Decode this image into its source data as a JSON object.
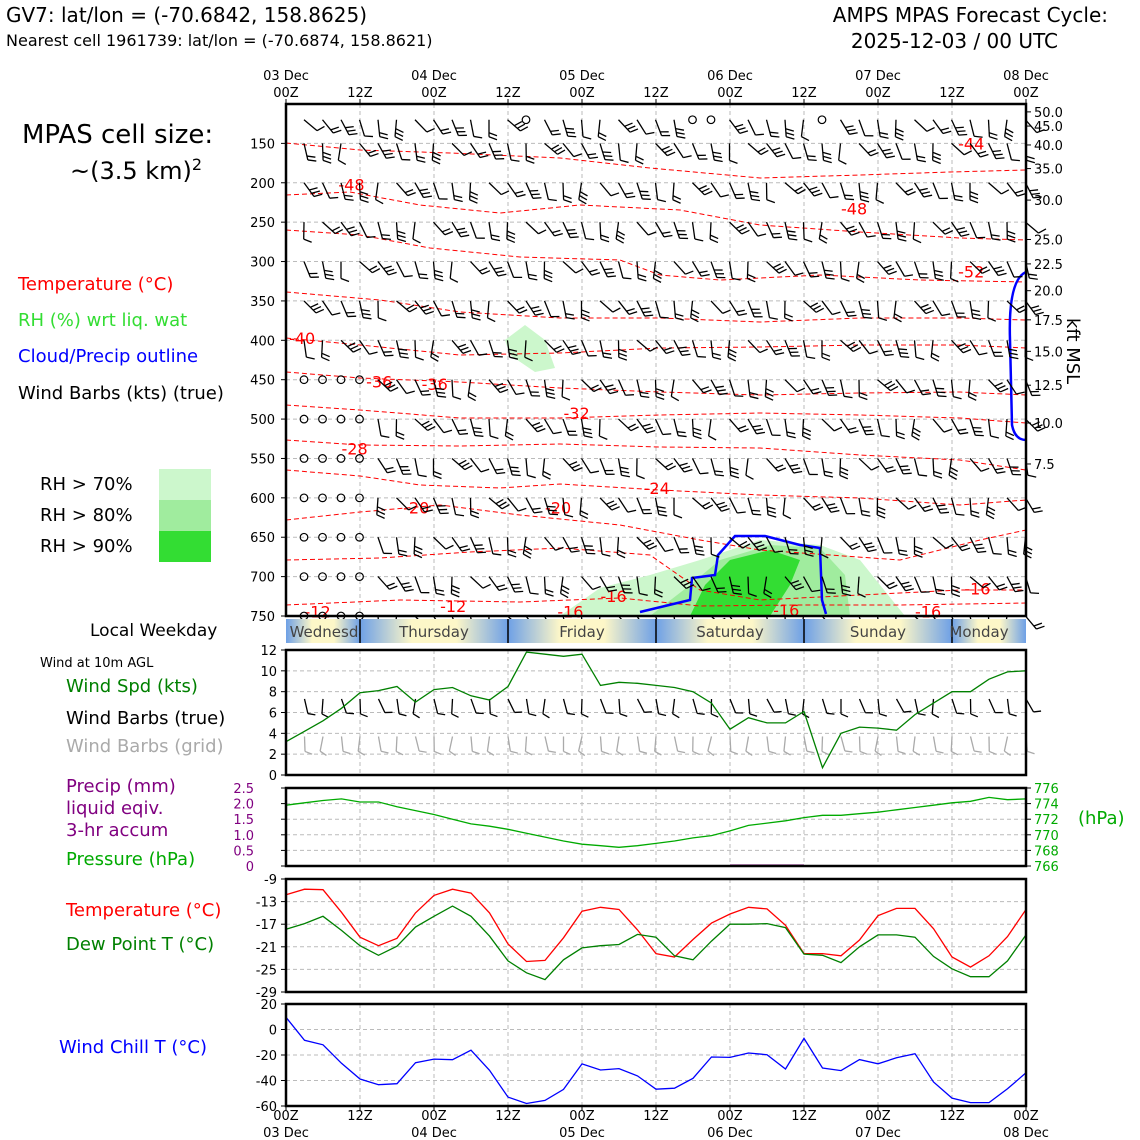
{
  "header": {
    "station_line": "GV7: lat/lon = (-70.6842, 158.8625)",
    "cell_line": "Nearest cell 1961739: lat/lon = (-70.6874, 158.8621)",
    "cycle_title": "AMPS MPAS Forecast Cycle:",
    "cycle_date": "2025-12-03 / 00 UTC"
  },
  "cell_size": {
    "label": "MPAS cell size:",
    "value": "~(3.5 km)",
    "exponent": "2"
  },
  "legend": {
    "temperature": "Temperature (°C)",
    "rh": "RH (%) wrt liq. wat",
    "cloud": "Cloud/Precip outline",
    "wind": "Wind Barbs (kts) (true)",
    "rh70": "RH > 70%",
    "rh80": "RH > 80%",
    "rh90": "RH > 90%",
    "colors": {
      "temperature": "#ff0000",
      "rh": "#33dd33",
      "cloud": "#0000ff",
      "rh70": "#ccf7cc",
      "rh80": "#a0ec9e",
      "rh90": "#33dd33"
    }
  },
  "time_axis": {
    "hours": [
      0,
      120
    ],
    "top_ticks": [
      {
        "h": 0,
        "line1": "03 Dec",
        "line2": "00Z"
      },
      {
        "h": 12,
        "line1": "",
        "line2": "12Z"
      },
      {
        "h": 24,
        "line1": "04 Dec",
        "line2": "00Z"
      },
      {
        "h": 36,
        "line1": "",
        "line2": "12Z"
      },
      {
        "h": 48,
        "line1": "05 Dec",
        "line2": "00Z"
      },
      {
        "h": 60,
        "line1": "",
        "line2": "12Z"
      },
      {
        "h": 72,
        "line1": "06 Dec",
        "line2": "00Z"
      },
      {
        "h": 84,
        "line1": "",
        "line2": "12Z"
      },
      {
        "h": 96,
        "line1": "07 Dec",
        "line2": "00Z"
      },
      {
        "h": 108,
        "line1": "",
        "line2": "12Z"
      },
      {
        "h": 120,
        "line1": "08 Dec",
        "line2": "00Z"
      }
    ],
    "bottom_ticks": [
      {
        "h": 0,
        "line1": "00Z",
        "line2": "03 Dec"
      },
      {
        "h": 12,
        "line1": "12Z",
        "line2": ""
      },
      {
        "h": 24,
        "line1": "00Z",
        "line2": "04 Dec"
      },
      {
        "h": 36,
        "line1": "12Z",
        "line2": ""
      },
      {
        "h": 48,
        "line1": "00Z",
        "line2": "05 Dec"
      },
      {
        "h": 60,
        "line1": "12Z",
        "line2": ""
      },
      {
        "h": 72,
        "line1": "00Z",
        "line2": "06 Dec"
      },
      {
        "h": 84,
        "line1": "12Z",
        "line2": ""
      },
      {
        "h": 96,
        "line1": "00Z",
        "line2": "07 Dec"
      },
      {
        "h": 108,
        "line1": "12Z",
        "line2": ""
      },
      {
        "h": 120,
        "line1": "00Z",
        "line2": "08 Dec"
      }
    ]
  },
  "weekday": {
    "label": "Local Weekday",
    "days": [
      "Wednesday",
      "Thursday",
      "Friday",
      "Saturday",
      "Sunday",
      "Monday"
    ]
  },
  "chart_data": [
    {
      "type": "heatmap",
      "panel": "cross-section",
      "yaxis_left": "pressure (hPa)",
      "ylim": [
        750,
        100
      ],
      "pressure_ticks": [
        150,
        200,
        250,
        300,
        350,
        400,
        450,
        500,
        550,
        600,
        650,
        700,
        750
      ],
      "ylabel_right": "kft MSL",
      "kft_ticks": [
        {
          "p": 110,
          "label": "50.0"
        },
        {
          "p": 128,
          "label": "45.0"
        },
        {
          "p": 152,
          "label": "40.0"
        },
        {
          "p": 182,
          "label": "35.0"
        },
        {
          "p": 222,
          "label": "30.0"
        },
        {
          "p": 272,
          "label": "25.0"
        },
        {
          "p": 303,
          "label": "22.5"
        },
        {
          "p": 337,
          "label": "20.0"
        },
        {
          "p": 374,
          "label": "17.5"
        },
        {
          "p": 414,
          "label": "15.0"
        },
        {
          "p": 457,
          "label": "12.5"
        },
        {
          "p": 505,
          "label": "10.0"
        },
        {
          "p": 557,
          "label": "7.5"
        }
      ],
      "temperature_labels": [
        {
          "h": 109,
          "p": 158,
          "text": "-44"
        },
        {
          "h": 8.5,
          "p": 210,
          "text": "-48"
        },
        {
          "h": 90,
          "p": 240,
          "text": "-48"
        },
        {
          "h": 109,
          "p": 320,
          "text": "-52"
        },
        {
          "h": 0.5,
          "p": 405,
          "text": "-40"
        },
        {
          "h": 13,
          "p": 460,
          "text": "-36"
        },
        {
          "h": 22,
          "p": 463,
          "text": "-36"
        },
        {
          "h": 45,
          "p": 500,
          "text": "-32"
        },
        {
          "h": 9,
          "p": 545,
          "text": "-28"
        },
        {
          "h": 19,
          "p": 620,
          "text": "-20"
        },
        {
          "h": 42,
          "p": 620,
          "text": "-20"
        },
        {
          "h": 58,
          "p": 595,
          "text": "-24"
        },
        {
          "h": 3,
          "p": 752,
          "text": "-12"
        },
        {
          "h": 25,
          "p": 745,
          "text": "-12"
        },
        {
          "h": 44,
          "p": 752,
          "text": "-16"
        },
        {
          "h": 51,
          "p": 732,
          "text": "-16"
        },
        {
          "h": 79,
          "p": 750,
          "text": "-16"
        },
        {
          "h": 102,
          "p": 752,
          "text": "-16"
        },
        {
          "h": 110,
          "p": 723,
          "text": "-16"
        }
      ],
      "barb_levels": [
        120,
        150,
        200,
        250,
        300,
        350,
        400,
        450,
        500,
        550,
        600,
        650,
        700,
        750
      ]
    },
    {
      "type": "line",
      "panel": "wind10m",
      "title": "Wind at 10m AGL",
      "labels": [
        "Wind Spd (kts)",
        "Wind Barbs (true)",
        "Wind Barbs (grid)"
      ],
      "label_colors": [
        "#008000",
        "#000000",
        "#aaaaaa"
      ],
      "ylim": [
        0,
        12
      ],
      "yticks": [
        0,
        2,
        4,
        6,
        8,
        10,
        12
      ],
      "x": [
        0,
        3,
        6,
        9,
        12,
        15,
        18,
        21,
        24,
        27,
        30,
        33,
        36,
        39,
        42,
        45,
        48,
        51,
        54,
        57,
        60,
        63,
        66,
        69,
        72,
        75,
        78,
        81,
        84,
        87,
        90,
        93,
        96,
        99,
        102,
        105,
        108,
        111,
        114,
        117,
        120
      ],
      "series": [
        {
          "name": "Wind Spd (kts)",
          "color": "#008000",
          "values": [
            3.2,
            4.2,
            5.2,
            6.4,
            7.9,
            8.1,
            8.5,
            7.0,
            8.2,
            8.4,
            7.6,
            7.2,
            8.5,
            11.8,
            11.6,
            11.4,
            11.6,
            8.6,
            8.9,
            8.8,
            8.6,
            8.4,
            8.0,
            6.9,
            4.4,
            5.5,
            5.0,
            5.0,
            6.1,
            0.7,
            4.0,
            4.6,
            4.5,
            4.3,
            5.8,
            6.9,
            8.0,
            8.0,
            9.2,
            9.9,
            10.0
          ]
        }
      ]
    },
    {
      "type": "line",
      "panel": "precip-pressure",
      "labels": [
        "Precip (mm)",
        "liquid eqiv.",
        "3-hr accum",
        "Pressure (hPa)"
      ],
      "label_colors": [
        "#800080",
        "#800080",
        "#800080",
        "#00aa00"
      ],
      "y1lim": [
        0,
        2.5
      ],
      "y1ticks": [
        "0",
        "0.5",
        "1.0",
        "1.5",
        "2.0",
        "2.5"
      ],
      "y2lim": [
        766,
        776
      ],
      "y2ticks": [
        "766",
        "768",
        "770",
        "772",
        "774",
        "776"
      ],
      "y2label": "(hPa)",
      "x": [
        0,
        3,
        6,
        9,
        12,
        15,
        18,
        21,
        24,
        27,
        30,
        33,
        36,
        39,
        42,
        45,
        48,
        51,
        54,
        57,
        60,
        63,
        66,
        69,
        72,
        75,
        78,
        81,
        84,
        87,
        90,
        93,
        96,
        99,
        102,
        105,
        108,
        111,
        114,
        117,
        120
      ],
      "series": [
        {
          "name": "Pressure (hPa)",
          "color": "#00aa00",
          "values": [
            773.8,
            774.1,
            774.4,
            774.6,
            774.2,
            774.2,
            773.6,
            773.1,
            772.6,
            772.0,
            771.4,
            771.1,
            770.7,
            770.2,
            769.7,
            769.2,
            768.8,
            768.6,
            768.4,
            768.6,
            768.9,
            769.2,
            769.6,
            769.9,
            770.5,
            771.2,
            771.5,
            771.8,
            772.2,
            772.5,
            772.5,
            772.7,
            772.9,
            773.2,
            773.5,
            773.8,
            774.1,
            774.3,
            774.8,
            774.5,
            774.6
          ]
        },
        {
          "name": "Precip (mm)",
          "color": "#800080",
          "values": [
            0,
            0,
            0,
            0,
            0,
            0,
            0,
            0,
            0,
            0,
            0,
            0,
            0,
            0,
            0,
            0,
            0,
            0,
            0,
            0,
            0,
            0,
            0,
            0,
            0.05,
            0.05,
            0.05,
            0.05,
            0,
            0,
            0,
            0,
            0,
            0,
            0,
            0,
            0,
            0,
            0,
            0,
            0
          ]
        }
      ]
    },
    {
      "type": "line",
      "panel": "temperature",
      "labels": [
        "Temperature (°C)",
        "Dew Point T (°C)"
      ],
      "label_colors": [
        "#ff0000",
        "#008000"
      ],
      "ylim": [
        -29,
        -9
      ],
      "yticks": [
        -29,
        -25,
        -21,
        -17,
        -13,
        -9
      ],
      "x": [
        0,
        3,
        6,
        9,
        12,
        15,
        18,
        21,
        24,
        27,
        30,
        33,
        36,
        39,
        42,
        45,
        48,
        51,
        54,
        57,
        60,
        63,
        66,
        69,
        72,
        75,
        78,
        81,
        84,
        87,
        90,
        93,
        96,
        99,
        102,
        105,
        108,
        111,
        114,
        117,
        120
      ],
      "series": [
        {
          "name": "Temperature (°C)",
          "color": "#ff0000",
          "values": [
            -11.8,
            -10.8,
            -10.9,
            -14.9,
            -19.3,
            -20.8,
            -19.5,
            -15.0,
            -11.9,
            -10.8,
            -11.5,
            -15.0,
            -20.5,
            -23.6,
            -23.4,
            -19.4,
            -14.7,
            -14.0,
            -14.4,
            -18.0,
            -22.2,
            -22.8,
            -19.7,
            -16.8,
            -15.2,
            -14.0,
            -14.3,
            -17.2,
            -22.2,
            -22.2,
            -22.6,
            -19.8,
            -15.5,
            -14.2,
            -14.2,
            -17.8,
            -22.8,
            -24.6,
            -22.6,
            -19.2,
            -14.4
          ]
        },
        {
          "name": "Dew Point T (°C)",
          "color": "#008000",
          "values": [
            -17.9,
            -16.9,
            -15.6,
            -18.1,
            -20.8,
            -22.5,
            -20.9,
            -17.5,
            -15.6,
            -13.8,
            -15.6,
            -19.1,
            -23.5,
            -25.6,
            -26.8,
            -23.3,
            -21.2,
            -20.8,
            -20.6,
            -18.8,
            -19.3,
            -22.6,
            -23.3,
            -20.0,
            -17.0,
            -17.0,
            -16.9,
            -17.6,
            -22.3,
            -22.5,
            -23.8,
            -21.0,
            -18.9,
            -18.9,
            -19.3,
            -22.7,
            -24.9,
            -26.3,
            -26.3,
            -23.5,
            -18.9
          ]
        }
      ]
    },
    {
      "type": "line",
      "panel": "windchill",
      "labels": [
        "Wind Chill T (°C)"
      ],
      "label_colors": [
        "#0000ff"
      ],
      "ylim": [
        -60,
        20
      ],
      "yticks": [
        -60,
        -40,
        -20,
        0,
        20
      ],
      "x": [
        0,
        3,
        6,
        9,
        12,
        15,
        18,
        21,
        24,
        27,
        30,
        33,
        36,
        39,
        42,
        45,
        48,
        51,
        54,
        57,
        60,
        63,
        66,
        69,
        72,
        75,
        78,
        81,
        84,
        87,
        90,
        93,
        96,
        99,
        102,
        105,
        108,
        111,
        114,
        117,
        120
      ],
      "series": [
        {
          "name": "Wind Chill T (°C)",
          "color": "#0000ff",
          "values": [
            9.6,
            -8.5,
            -12.0,
            -26.5,
            -38.8,
            -43.3,
            -42.5,
            -26.0,
            -23.2,
            -23.7,
            -16.2,
            -32.0,
            -53.0,
            -58.0,
            -55.6,
            -47.0,
            -27.0,
            -31.8,
            -30.7,
            -36.4,
            -46.8,
            -46.0,
            -38.3,
            -21.6,
            -21.9,
            -18.4,
            -19.8,
            -31.0,
            -7.0,
            -30.2,
            -32.2,
            -23.6,
            -26.9,
            -22.2,
            -19.0,
            -41.2,
            -53.8,
            -57.3,
            -57.3,
            -46.5,
            -34.0
          ]
        }
      ]
    }
  ]
}
